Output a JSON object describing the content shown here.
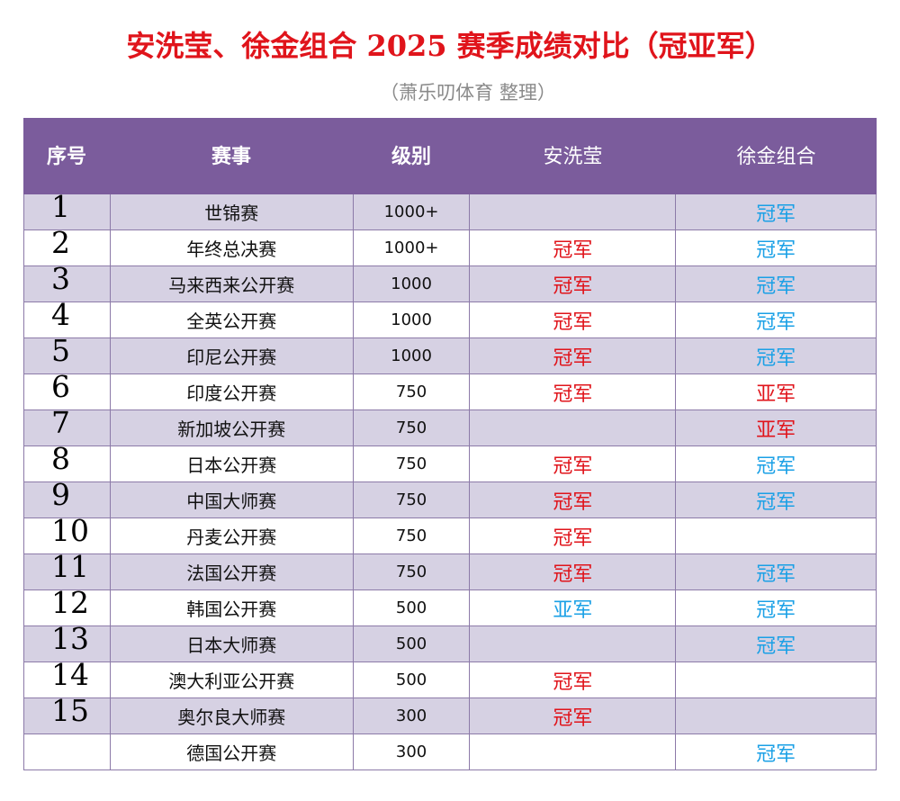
{
  "title": "安洗莹、徐金组合 2025 赛季成绩对比（冠亚军）",
  "subtitle": "（萧乐叨体育 整理）",
  "colors": {
    "title": "#e0141b",
    "header_bg": "#7b5c9c",
    "row_alt": "#d6d1e3",
    "result_red": "#e0141b",
    "result_blue": "#1aa0e6"
  },
  "headers": {
    "index": "序号",
    "event": "赛事",
    "level": "级别",
    "player_a": "安洗莹",
    "player_b": "徐金组合"
  },
  "rows": [
    {
      "index": "1",
      "event": "世锦赛",
      "level": "1000+",
      "a": "",
      "a_color": "",
      "b": "冠军",
      "b_color": "blue"
    },
    {
      "index": "2",
      "event": "年终总决赛",
      "level": "1000+",
      "a": "冠军",
      "a_color": "red",
      "b": "冠军",
      "b_color": "blue"
    },
    {
      "index": "3",
      "event": "马来西来公开赛",
      "level": "1000",
      "a": "冠军",
      "a_color": "red",
      "b": "冠军",
      "b_color": "blue"
    },
    {
      "index": "4",
      "event": "全英公开赛",
      "level": "1000",
      "a": "冠军",
      "a_color": "red",
      "b": "冠军",
      "b_color": "blue"
    },
    {
      "index": "5",
      "event": "印尼公开赛",
      "level": "1000",
      "a": "冠军",
      "a_color": "red",
      "b": "冠军",
      "b_color": "blue"
    },
    {
      "index": "6",
      "event": "印度公开赛",
      "level": "750",
      "a": "冠军",
      "a_color": "red",
      "b": "亚军",
      "b_color": "red"
    },
    {
      "index": "7",
      "event": "新加坡公开赛",
      "level": "750",
      "a": "",
      "a_color": "",
      "b": "亚军",
      "b_color": "red"
    },
    {
      "index": "8",
      "event": "日本公开赛",
      "level": "750",
      "a": "冠军",
      "a_color": "red",
      "b": "冠军",
      "b_color": "blue"
    },
    {
      "index": "9",
      "event": "中国大师赛",
      "level": "750",
      "a": "冠军",
      "a_color": "red",
      "b": "冠军",
      "b_color": "blue"
    },
    {
      "index": "10",
      "event": "丹麦公开赛",
      "level": "750",
      "a": "冠军",
      "a_color": "red",
      "b": "",
      "b_color": ""
    },
    {
      "index": "11",
      "event": "法国公开赛",
      "level": "750",
      "a": "冠军",
      "a_color": "red",
      "b": "冠军",
      "b_color": "blue"
    },
    {
      "index": "12",
      "event": "韩国公开赛",
      "level": "500",
      "a": "亚军",
      "a_color": "blue",
      "b": "冠军",
      "b_color": "blue"
    },
    {
      "index": "13",
      "event": "日本大师赛",
      "level": "500",
      "a": "",
      "a_color": "",
      "b": "冠军",
      "b_color": "blue"
    },
    {
      "index": "14",
      "event": "澳大利亚公开赛",
      "level": "500",
      "a": "冠军",
      "a_color": "red",
      "b": "",
      "b_color": ""
    },
    {
      "index": "15",
      "event": "奥尔良大师赛",
      "level": "300",
      "a": "冠军",
      "a_color": "red",
      "b": "",
      "b_color": ""
    },
    {
      "index": "",
      "event": "德国公开赛",
      "level": "300",
      "a": "",
      "a_color": "",
      "b": "冠军",
      "b_color": "blue"
    }
  ]
}
